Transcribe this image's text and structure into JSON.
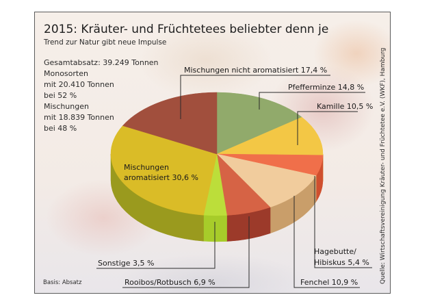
{
  "chart_data": {
    "type": "pie",
    "title": "2015: Kräuter- und Früchtetees beliebter denn je",
    "subtitle": "Trend zur Natur gibt neue Impulse",
    "unit": "%",
    "slices": [
      {
        "label": "Pfefferminze",
        "value": 14.8,
        "display": "Pfefferminze 14,8 %",
        "color": "#8ba562",
        "side_color": "#6f8a4c"
      },
      {
        "label": "Kamille",
        "value": 10.5,
        "display": "Kamille 10,5 %",
        "color": "#f3c43a",
        "side_color": "#d4a52c"
      },
      {
        "label": "Hagebutte/Hibiskus",
        "value": 5.4,
        "display_lines": [
          "Hagebutte/",
          "Hibiskus 5,4 %"
        ],
        "color": "#f0673f",
        "side_color": "#cf4f2e"
      },
      {
        "label": "Fenchel",
        "value": 10.9,
        "display": "Fenchel 10,9 %",
        "color": "#f1c997",
        "side_color": "#c99e6a"
      },
      {
        "label": "Rooibos/Rotbusch",
        "value": 6.9,
        "display": "Rooibos/Rotbusch 6,9 %",
        "color": "#d45a3a",
        "side_color": "#9c3a2a"
      },
      {
        "label": "Sonstige",
        "value": 3.5,
        "display": "Sonstige 3,5 %",
        "color": "#b8dc2e",
        "side_color": "#a7cc2a"
      },
      {
        "label": "Mischungen aromatisiert",
        "value": 30.6,
        "display_lines": [
          "Mischungen",
          "aromatisiert 30,6 %"
        ],
        "color": "#d8b81a",
        "side_color": "#9a9a1e"
      },
      {
        "label": "Mischungen nicht aromatisiert",
        "value": 17.4,
        "display": "Mischungen nicht aromatisiert 17,4 %",
        "color": "#9c4431",
        "side_color": "#7a3426"
      }
    ],
    "start": "top",
    "direction": "clockwise",
    "legend": "none"
  },
  "info_block": {
    "lines": [
      "Gesamtabsatz: 39.249 Tonnen",
      "Monosorten",
      "mit 20.410 Tonnen",
      "bei 52 %",
      "Mischungen",
      "mit 18.839 Tonnen",
      "bei 48 %"
    ]
  },
  "footer": {
    "basis": "Basis: Absatz",
    "source": "Quelle: Wirtschaftsvereinigung Kräuter- und Früchtetee e.V. (WKF), Hamburg"
  }
}
